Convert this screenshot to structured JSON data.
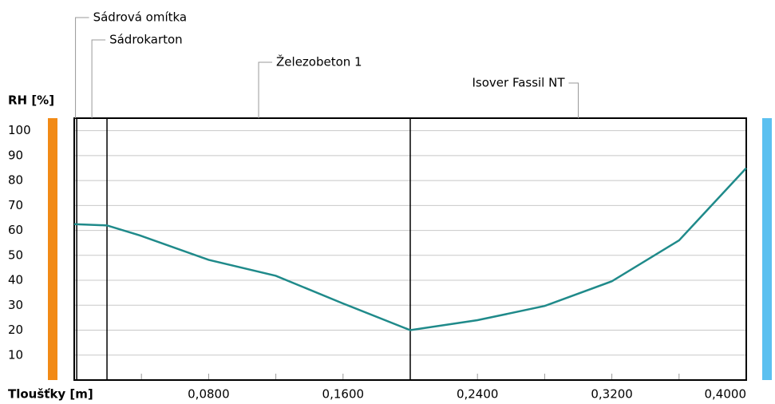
{
  "chart_data": {
    "type": "line",
    "ylabel": "RH [%]",
    "xlabel": "Tloušťky [m]",
    "x": [
      0,
      0.0195,
      0.039,
      0.08,
      0.12,
      0.16,
      0.2,
      0.24,
      0.28,
      0.32,
      0.36,
      0.4
    ],
    "series": [
      {
        "name": "RH",
        "color": "#1f8a8a",
        "values": [
          62.5,
          62,
          58,
          48.2,
          41.8,
          30.7,
          20,
          24,
          29.7,
          39.6,
          56,
          85
        ]
      }
    ],
    "xlim": [
      0,
      0.4
    ],
    "ylim": [
      0,
      105
    ],
    "yticks": [
      10,
      20,
      30,
      40,
      50,
      60,
      70,
      80,
      90,
      100
    ],
    "xticks": [
      {
        "value": 0.08,
        "label": "0,0800"
      },
      {
        "value": 0.16,
        "label": "0,1600"
      },
      {
        "value": 0.24,
        "label": "0,2400"
      },
      {
        "value": 0.32,
        "label": "0,3200"
      },
      {
        "value": 0.4,
        "label": "0,4000"
      }
    ],
    "xminorticks": [
      0.04,
      0.12,
      0.2,
      0.28,
      0.36
    ],
    "grid": true,
    "layers": [
      {
        "name": "Sádrová omítka",
        "from": 0,
        "to": 0.0015
      },
      {
        "name": "Sádrokarton",
        "from": 0.0015,
        "to": 0.0195
      },
      {
        "name": "Železobeton 1",
        "from": 0.0195,
        "to": 0.2
      },
      {
        "name": "Isover Fassil NT",
        "from": 0.2,
        "to": 0.4
      }
    ],
    "interior_color": "#f28a16",
    "exterior_color": "#5bc0f0"
  }
}
